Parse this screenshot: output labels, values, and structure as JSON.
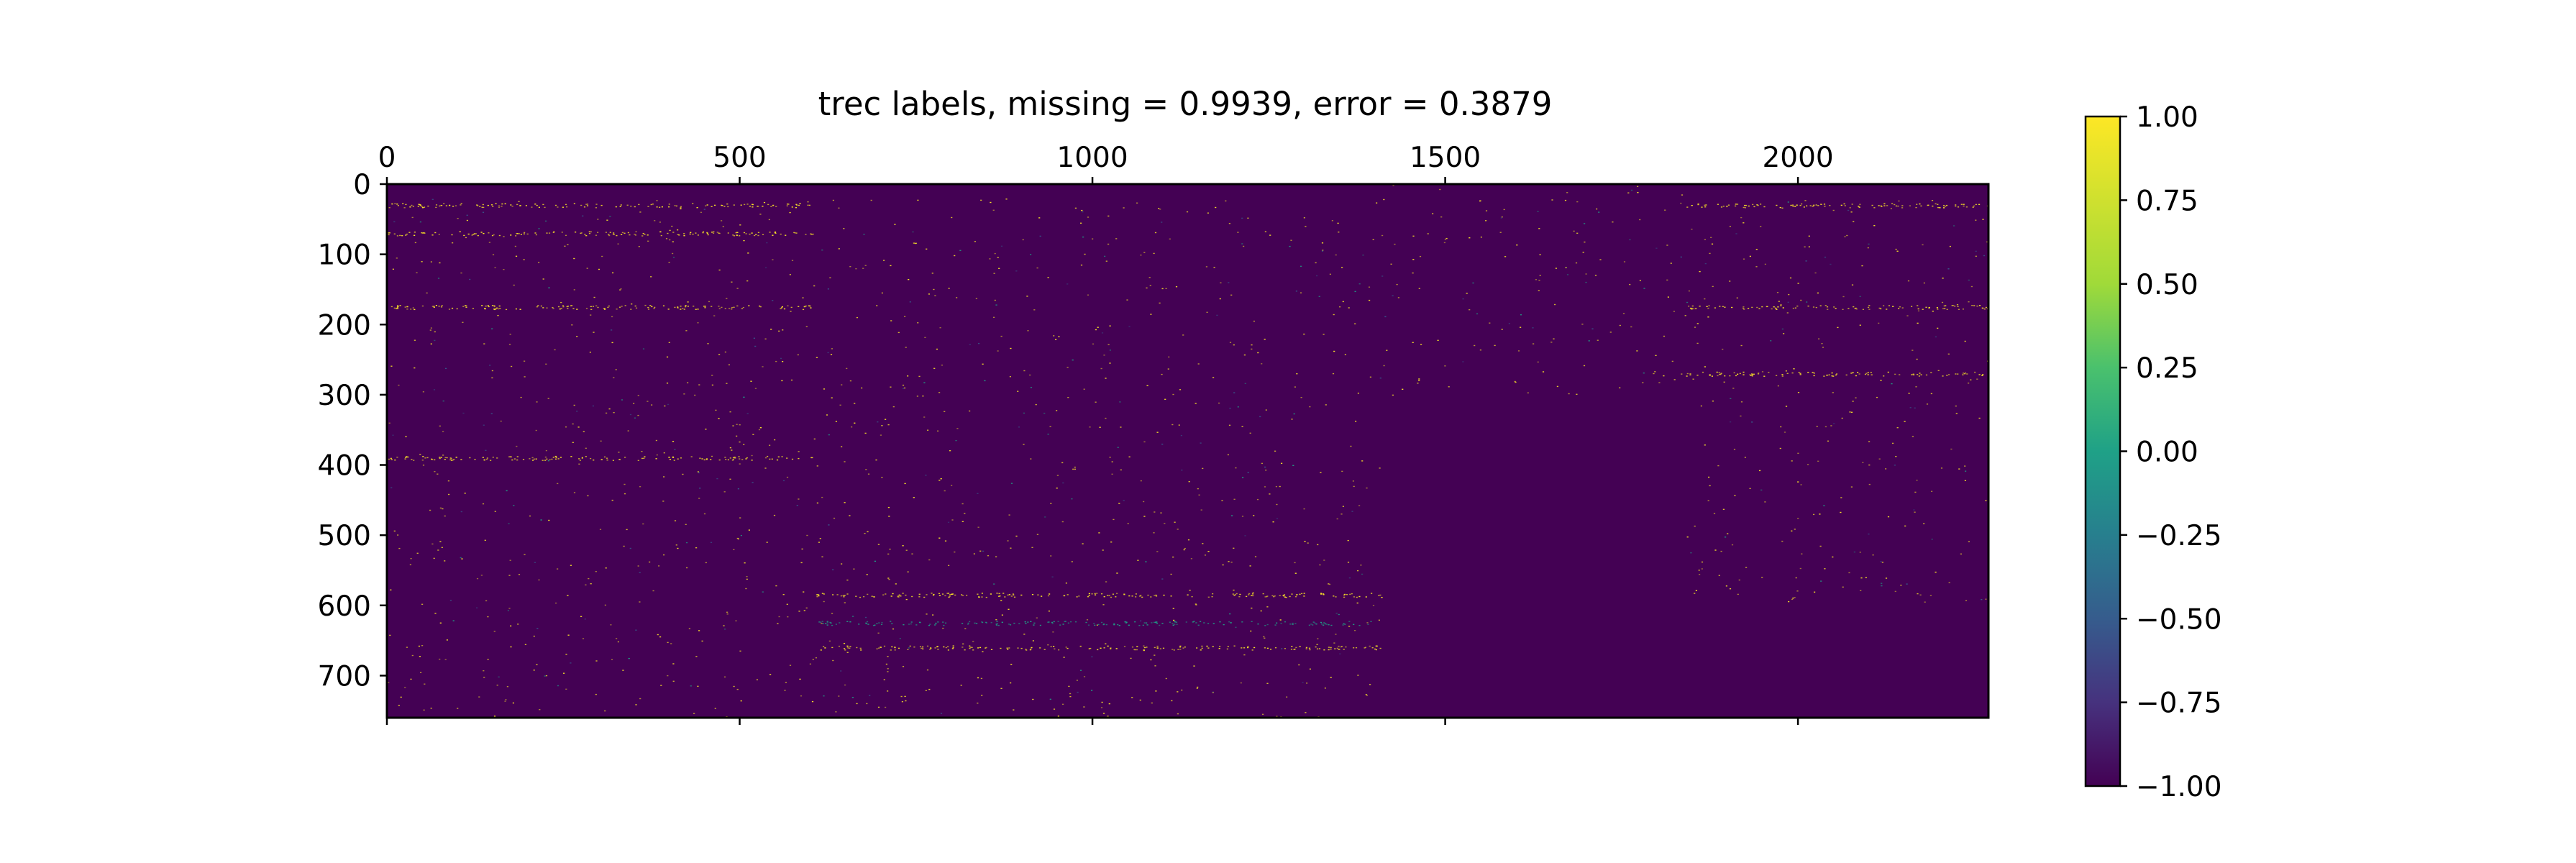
{
  "chart_data": {
    "type": "heatmap",
    "title": "trec labels, missing = 0.9939, error = 0.3879",
    "xlabel": "",
    "ylabel": "",
    "xlim": [
      0,
      2270
    ],
    "ylim": [
      760,
      0
    ],
    "x_ticks": [
      0,
      500,
      1000,
      1500,
      2000
    ],
    "x_tick_labels": [
      "0",
      "500",
      "1000",
      "1500",
      "2000"
    ],
    "x_ticks_position": "top",
    "y_ticks": [
      0,
      100,
      200,
      300,
      400,
      500,
      600,
      700
    ],
    "y_tick_labels": [
      "0",
      "100",
      "200",
      "300",
      "400",
      "500",
      "600",
      "700"
    ],
    "grid": false,
    "colormap": "viridis",
    "background_value": -1.0,
    "background_color": "#440154",
    "colorbar": {
      "vmin": -1.0,
      "vmax": 1.0,
      "ticks": [
        1.0,
        0.75,
        0.5,
        0.25,
        0.0,
        -0.25,
        -0.5,
        -0.75,
        -1.0
      ],
      "tick_labels": [
        "1.00",
        "0.75",
        "0.50",
        "0.25",
        "0.00",
        "−0.25",
        "−0.50",
        "−0.75",
        "−1.00"
      ],
      "position": "right"
    },
    "blocks": [
      {
        "x": [
          0,
          605
        ],
        "y": [
          20,
          760
        ]
      },
      {
        "x": [
          605,
          1410
        ],
        "y": [
          20,
          760
        ]
      },
      {
        "x": [
          1410,
          1840
        ],
        "y": [
          0,
          300
        ]
      },
      {
        "x": [
          1840,
          2270
        ],
        "y": [
          20,
          600
        ]
      }
    ],
    "horizontal_bands": [
      {
        "y": 30,
        "x": [
          0,
          605
        ],
        "value": 1.0
      },
      {
        "y": 30,
        "x": [
          1840,
          2270
        ],
        "value": 1.0
      },
      {
        "y": 70,
        "x": [
          0,
          605
        ],
        "value": 1.0
      },
      {
        "y": 175,
        "x": [
          0,
          605
        ],
        "value": 1.0
      },
      {
        "y": 175,
        "x": [
          1840,
          2270
        ],
        "value": 1.0
      },
      {
        "y": 270,
        "x": [
          1840,
          2270
        ],
        "value": 1.0
      },
      {
        "y": 390,
        "x": [
          0,
          605
        ],
        "value": 1.0
      },
      {
        "y": 585,
        "x": [
          605,
          1410
        ],
        "value": 1.0
      },
      {
        "y": 625,
        "x": [
          605,
          1410
        ],
        "value": 0.0
      },
      {
        "y": 660,
        "x": [
          605,
          1410
        ],
        "value": 1.0
      }
    ]
  }
}
